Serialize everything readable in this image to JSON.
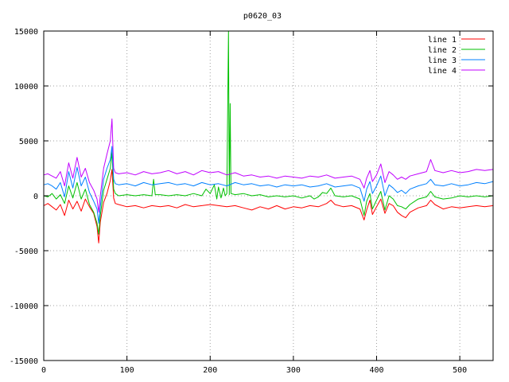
{
  "chart_data": {
    "type": "line",
    "title": "p0620_03",
    "xlabel": "",
    "ylabel": "",
    "xlim": [
      0,
      540
    ],
    "ylim": [
      -15000,
      15000
    ],
    "x_ticks": [
      "0",
      "100",
      "200",
      "300",
      "400",
      "500"
    ],
    "y_ticks": [
      "15000",
      "10000",
      "5000",
      "0",
      "-5000",
      "-10000",
      "-15000"
    ],
    "grid": true,
    "legend_position": "top-right",
    "series": [
      {
        "name": "line 1",
        "color": "#ff0000",
        "points": [
          [
            0,
            -900
          ],
          [
            5,
            -700
          ],
          [
            10,
            -1000
          ],
          [
            15,
            -1300
          ],
          [
            20,
            -800
          ],
          [
            25,
            -1800
          ],
          [
            30,
            -400
          ],
          [
            35,
            -1200
          ],
          [
            40,
            -500
          ],
          [
            45,
            -1400
          ],
          [
            50,
            -300
          ],
          [
            55,
            -1000
          ],
          [
            60,
            -1600
          ],
          [
            64,
            -2800
          ],
          [
            66,
            -4300
          ],
          [
            68,
            -2400
          ],
          [
            72,
            -600
          ],
          [
            76,
            200
          ],
          [
            80,
            1400
          ],
          [
            82,
            2400
          ],
          [
            84,
            -200
          ],
          [
            86,
            -700
          ],
          [
            90,
            -800
          ],
          [
            100,
            -1000
          ],
          [
            110,
            -900
          ],
          [
            120,
            -1100
          ],
          [
            130,
            -900
          ],
          [
            140,
            -1000
          ],
          [
            150,
            -900
          ],
          [
            160,
            -1100
          ],
          [
            170,
            -800
          ],
          [
            180,
            -1000
          ],
          [
            190,
            -900
          ],
          [
            200,
            -800
          ],
          [
            210,
            -900
          ],
          [
            220,
            -1000
          ],
          [
            230,
            -900
          ],
          [
            240,
            -1100
          ],
          [
            250,
            -1300
          ],
          [
            260,
            -1000
          ],
          [
            270,
            -1200
          ],
          [
            280,
            -900
          ],
          [
            290,
            -1200
          ],
          [
            300,
            -1000
          ],
          [
            310,
            -1100
          ],
          [
            320,
            -900
          ],
          [
            330,
            -1000
          ],
          [
            340,
            -700
          ],
          [
            345,
            -400
          ],
          [
            350,
            -800
          ],
          [
            360,
            -1000
          ],
          [
            370,
            -900
          ],
          [
            380,
            -1200
          ],
          [
            385,
            -2200
          ],
          [
            388,
            -1300
          ],
          [
            392,
            -400
          ],
          [
            395,
            -1700
          ],
          [
            400,
            -1000
          ],
          [
            405,
            -300
          ],
          [
            410,
            -1600
          ],
          [
            415,
            -700
          ],
          [
            420,
            -900
          ],
          [
            425,
            -1500
          ],
          [
            430,
            -1800
          ],
          [
            435,
            -2000
          ],
          [
            440,
            -1500
          ],
          [
            450,
            -1100
          ],
          [
            460,
            -900
          ],
          [
            465,
            -400
          ],
          [
            470,
            -800
          ],
          [
            480,
            -1200
          ],
          [
            490,
            -1000
          ],
          [
            500,
            -1100
          ],
          [
            510,
            -1000
          ],
          [
            520,
            -900
          ],
          [
            530,
            -1000
          ],
          [
            540,
            -900
          ]
        ]
      },
      {
        "name": "line 2",
        "color": "#00c000",
        "points": [
          [
            0,
            0
          ],
          [
            5,
            -100
          ],
          [
            10,
            200
          ],
          [
            15,
            -300
          ],
          [
            20,
            100
          ],
          [
            25,
            -700
          ],
          [
            30,
            900
          ],
          [
            35,
            -200
          ],
          [
            40,
            1200
          ],
          [
            45,
            -300
          ],
          [
            50,
            600
          ],
          [
            55,
            -800
          ],
          [
            60,
            -1500
          ],
          [
            64,
            -2500
          ],
          [
            66,
            -3500
          ],
          [
            68,
            -1800
          ],
          [
            72,
            500
          ],
          [
            76,
            1500
          ],
          [
            80,
            2500
          ],
          [
            82,
            4000
          ],
          [
            84,
            600
          ],
          [
            86,
            200
          ],
          [
            90,
            0
          ],
          [
            100,
            100
          ],
          [
            110,
            0
          ],
          [
            120,
            100
          ],
          [
            130,
            0
          ],
          [
            132,
            1500
          ],
          [
            134,
            100
          ],
          [
            140,
            100
          ],
          [
            150,
            0
          ],
          [
            160,
            100
          ],
          [
            170,
            0
          ],
          [
            180,
            200
          ],
          [
            190,
            0
          ],
          [
            195,
            600
          ],
          [
            200,
            200
          ],
          [
            205,
            1000
          ],
          [
            208,
            -300
          ],
          [
            210,
            800
          ],
          [
            213,
            -200
          ],
          [
            216,
            700
          ],
          [
            218,
            0
          ],
          [
            220,
            200
          ],
          [
            222,
            15000
          ],
          [
            223,
            100
          ],
          [
            224,
            8400
          ],
          [
            225,
            200
          ],
          [
            230,
            100
          ],
          [
            240,
            200
          ],
          [
            250,
            0
          ],
          [
            260,
            100
          ],
          [
            270,
            -100
          ],
          [
            280,
            0
          ],
          [
            290,
            -100
          ],
          [
            300,
            0
          ],
          [
            310,
            -200
          ],
          [
            320,
            0
          ],
          [
            325,
            -300
          ],
          [
            330,
            -100
          ],
          [
            335,
            300
          ],
          [
            340,
            200
          ],
          [
            345,
            700
          ],
          [
            350,
            0
          ],
          [
            360,
            -100
          ],
          [
            370,
            0
          ],
          [
            380,
            -300
          ],
          [
            385,
            -1800
          ],
          [
            388,
            -500
          ],
          [
            392,
            200
          ],
          [
            395,
            -1200
          ],
          [
            400,
            -400
          ],
          [
            405,
            400
          ],
          [
            410,
            -1300
          ],
          [
            415,
            0
          ],
          [
            420,
            -300
          ],
          [
            425,
            -900
          ],
          [
            430,
            -1000
          ],
          [
            435,
            -1200
          ],
          [
            440,
            -800
          ],
          [
            450,
            -300
          ],
          [
            460,
            -100
          ],
          [
            465,
            400
          ],
          [
            470,
            -100
          ],
          [
            480,
            -300
          ],
          [
            490,
            -200
          ],
          [
            500,
            0
          ],
          [
            510,
            -100
          ],
          [
            520,
            0
          ],
          [
            530,
            -100
          ],
          [
            540,
            0
          ]
        ]
      },
      {
        "name": "line 3",
        "color": "#0080ff",
        "points": [
          [
            0,
            1000
          ],
          [
            5,
            1100
          ],
          [
            10,
            900
          ],
          [
            15,
            600
          ],
          [
            20,
            1200
          ],
          [
            25,
            -100
          ],
          [
            30,
            2200
          ],
          [
            35,
            700
          ],
          [
            40,
            2600
          ],
          [
            45,
            900
          ],
          [
            50,
            1700
          ],
          [
            55,
            300
          ],
          [
            60,
            -500
          ],
          [
            64,
            -1200
          ],
          [
            66,
            -2500
          ],
          [
            68,
            -1000
          ],
          [
            72,
            1500
          ],
          [
            76,
            2500
          ],
          [
            80,
            3300
          ],
          [
            82,
            4500
          ],
          [
            84,
            1500
          ],
          [
            86,
            1100
          ],
          [
            90,
            1000
          ],
          [
            100,
            1100
          ],
          [
            110,
            900
          ],
          [
            120,
            1200
          ],
          [
            130,
            1000
          ],
          [
            140,
            1100
          ],
          [
            150,
            1200
          ],
          [
            160,
            1000
          ],
          [
            170,
            1100
          ],
          [
            180,
            900
          ],
          [
            190,
            1200
          ],
          [
            200,
            1000
          ],
          [
            210,
            1100
          ],
          [
            220,
            900
          ],
          [
            230,
            1200
          ],
          [
            240,
            1000
          ],
          [
            250,
            1100
          ],
          [
            260,
            900
          ],
          [
            270,
            1000
          ],
          [
            280,
            800
          ],
          [
            290,
            1000
          ],
          [
            300,
            900
          ],
          [
            310,
            1000
          ],
          [
            320,
            800
          ],
          [
            330,
            900
          ],
          [
            340,
            1100
          ],
          [
            350,
            800
          ],
          [
            360,
            900
          ],
          [
            370,
            1000
          ],
          [
            380,
            700
          ],
          [
            385,
            -500
          ],
          [
            388,
            600
          ],
          [
            392,
            1300
          ],
          [
            395,
            200
          ],
          [
            400,
            900
          ],
          [
            405,
            1800
          ],
          [
            410,
            0
          ],
          [
            415,
            1000
          ],
          [
            420,
            700
          ],
          [
            425,
            300
          ],
          [
            430,
            500
          ],
          [
            435,
            200
          ],
          [
            440,
            600
          ],
          [
            450,
            900
          ],
          [
            460,
            1100
          ],
          [
            465,
            1500
          ],
          [
            470,
            1000
          ],
          [
            480,
            900
          ],
          [
            490,
            1100
          ],
          [
            500,
            900
          ],
          [
            510,
            1000
          ],
          [
            520,
            1200
          ],
          [
            530,
            1100
          ],
          [
            540,
            1300
          ]
        ]
      },
      {
        "name": "line 4",
        "color": "#c000ff",
        "points": [
          [
            0,
            1900
          ],
          [
            5,
            2000
          ],
          [
            10,
            1800
          ],
          [
            15,
            1600
          ],
          [
            20,
            2200
          ],
          [
            25,
            900
          ],
          [
            30,
            3000
          ],
          [
            35,
            1600
          ],
          [
            40,
            3500
          ],
          [
            45,
            1700
          ],
          [
            50,
            2500
          ],
          [
            55,
            1200
          ],
          [
            60,
            500
          ],
          [
            64,
            -300
          ],
          [
            66,
            -1500
          ],
          [
            68,
            0
          ],
          [
            72,
            2500
          ],
          [
            76,
            3800
          ],
          [
            80,
            5000
          ],
          [
            82,
            7000
          ],
          [
            84,
            2500
          ],
          [
            86,
            2100
          ],
          [
            90,
            2000
          ],
          [
            100,
            2100
          ],
          [
            110,
            1900
          ],
          [
            120,
            2200
          ],
          [
            130,
            2000
          ],
          [
            140,
            2100
          ],
          [
            150,
            2300
          ],
          [
            160,
            2000
          ],
          [
            170,
            2200
          ],
          [
            180,
            1900
          ],
          [
            190,
            2300
          ],
          [
            200,
            2100
          ],
          [
            210,
            2200
          ],
          [
            220,
            1900
          ],
          [
            230,
            2100
          ],
          [
            240,
            1800
          ],
          [
            250,
            1900
          ],
          [
            260,
            1700
          ],
          [
            270,
            1800
          ],
          [
            280,
            1600
          ],
          [
            290,
            1800
          ],
          [
            300,
            1700
          ],
          [
            310,
            1600
          ],
          [
            320,
            1800
          ],
          [
            330,
            1700
          ],
          [
            340,
            1900
          ],
          [
            350,
            1600
          ],
          [
            360,
            1700
          ],
          [
            370,
            1800
          ],
          [
            380,
            1500
          ],
          [
            385,
            700
          ],
          [
            388,
            1600
          ],
          [
            392,
            2300
          ],
          [
            395,
            1300
          ],
          [
            400,
            1900
          ],
          [
            405,
            2900
          ],
          [
            410,
            1200
          ],
          [
            415,
            2200
          ],
          [
            420,
            1900
          ],
          [
            425,
            1500
          ],
          [
            430,
            1700
          ],
          [
            435,
            1500
          ],
          [
            440,
            1800
          ],
          [
            450,
            2000
          ],
          [
            460,
            2200
          ],
          [
            465,
            3300
          ],
          [
            470,
            2300
          ],
          [
            480,
            2100
          ],
          [
            490,
            2300
          ],
          [
            500,
            2100
          ],
          [
            510,
            2200
          ],
          [
            520,
            2400
          ],
          [
            530,
            2300
          ],
          [
            540,
            2400
          ]
        ]
      }
    ]
  }
}
